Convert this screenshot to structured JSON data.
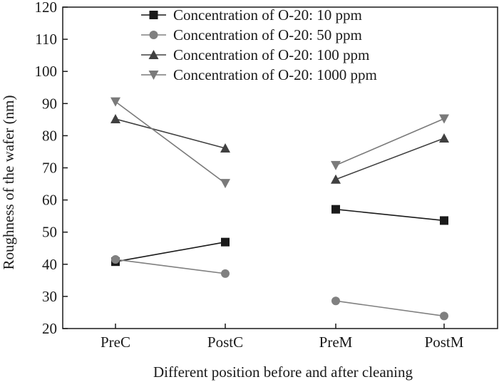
{
  "chart_data": {
    "type": "line",
    "title": "",
    "xlabel": "Different position before and after cleaning",
    "ylabel": "Roughness of the wafer (nm)",
    "ylim": [
      20,
      120
    ],
    "yticks": [
      20,
      30,
      40,
      50,
      60,
      70,
      80,
      90,
      100,
      110,
      120
    ],
    "categories": [
      "PreC",
      "PostC",
      "PreM",
      "PostM"
    ],
    "grid": false,
    "legend_position": "top-center",
    "segments": [
      [
        0,
        1
      ],
      [
        2,
        3
      ]
    ],
    "series": [
      {
        "name": "Concentration of O-20: 10 ppm",
        "marker": "square",
        "color": "#1a1a1a",
        "values": [
          40.8,
          46.9,
          57.1,
          53.6
        ]
      },
      {
        "name": "Concentration of O-20: 50 ppm",
        "marker": "circle",
        "color": "#808080",
        "values": [
          41.5,
          37.1,
          28.6,
          23.9
        ]
      },
      {
        "name": "Concentration of O-20: 100 ppm",
        "marker": "triangle-up",
        "color": "#404040",
        "values": [
          85.2,
          76.1,
          66.4,
          79.2
        ]
      },
      {
        "name": "Concentration of O-20: 1000 ppm",
        "marker": "triangle-down",
        "color": "#7a7a7a",
        "values": [
          90.6,
          65.2,
          70.8,
          85.3
        ]
      }
    ]
  }
}
